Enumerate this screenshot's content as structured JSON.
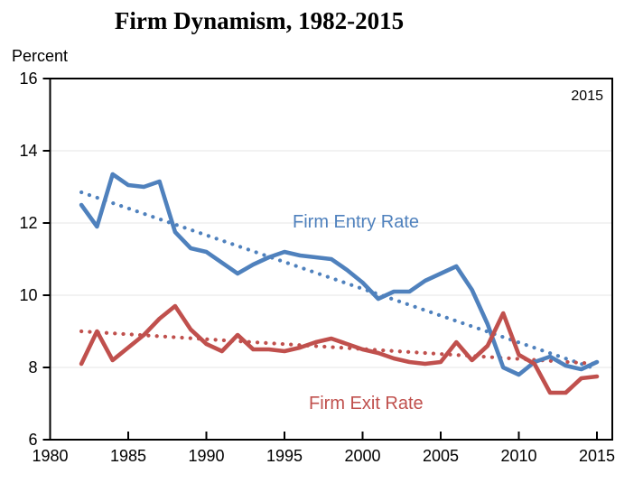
{
  "title": "Firm Dynamism, 1982-2015",
  "y_axis_label": "Percent",
  "annotation_year": "2015",
  "entry_label": "Firm Entry Rate",
  "exit_label": "Firm Exit Rate",
  "colors": {
    "entry": "#4F81BD",
    "exit": "#C0504D",
    "axis": "#000000",
    "gridline": "#ededed"
  },
  "chart_data": {
    "type": "line",
    "title": "Firm Dynamism, 1982-2015",
    "ylabel": "Percent",
    "ylim": [
      6,
      16
    ],
    "yticks": [
      6,
      8,
      10,
      12,
      14,
      16
    ],
    "xlim": [
      1980,
      2016
    ],
    "xticks": [
      1980,
      1985,
      1990,
      1995,
      2000,
      2005,
      2010,
      2015
    ],
    "grid": "horizontal-light",
    "legend_position": "inline-labels",
    "x": [
      1982,
      1983,
      1984,
      1985,
      1986,
      1987,
      1988,
      1989,
      1990,
      1991,
      1992,
      1993,
      1994,
      1995,
      1996,
      1997,
      1998,
      1999,
      2000,
      2001,
      2002,
      2003,
      2004,
      2005,
      2006,
      2007,
      2008,
      2009,
      2010,
      2011,
      2012,
      2013,
      2014,
      2015
    ],
    "series": [
      {
        "name": "Firm Entry Rate",
        "color": "#4F81BD",
        "style": "solid",
        "values": [
          12.5,
          11.9,
          13.35,
          13.05,
          13.0,
          13.15,
          11.75,
          11.3,
          11.2,
          10.9,
          10.6,
          10.85,
          11.05,
          11.2,
          11.1,
          11.05,
          11.0,
          10.7,
          10.35,
          9.9,
          10.1,
          10.1,
          10.4,
          10.6,
          10.8,
          10.15,
          9.2,
          8.0,
          7.8,
          8.15,
          8.3,
          8.05,
          7.95,
          8.15
        ]
      },
      {
        "name": "Firm Exit Rate",
        "color": "#C0504D",
        "style": "solid",
        "values": [
          8.1,
          9.0,
          8.2,
          8.55,
          8.9,
          9.35,
          9.7,
          9.05,
          8.65,
          8.45,
          8.9,
          8.5,
          8.5,
          8.45,
          8.55,
          8.7,
          8.8,
          8.65,
          8.5,
          8.4,
          8.25,
          8.15,
          8.1,
          8.15,
          8.7,
          8.2,
          8.6,
          9.5,
          8.35,
          8.1,
          7.3,
          7.3,
          7.7,
          7.75
        ]
      },
      {
        "name": "Firm Entry Rate trend",
        "color": "#4F81BD",
        "style": "dotted",
        "x": [
          1982,
          2015
        ],
        "values": [
          12.85,
          7.95
        ]
      },
      {
        "name": "Firm Exit Rate trend",
        "color": "#C0504D",
        "style": "dotted",
        "x": [
          1982,
          2015
        ],
        "values": [
          9.0,
          8.1
        ]
      }
    ],
    "annotations": [
      {
        "text": "2015",
        "position": "top-right-inside"
      }
    ]
  }
}
